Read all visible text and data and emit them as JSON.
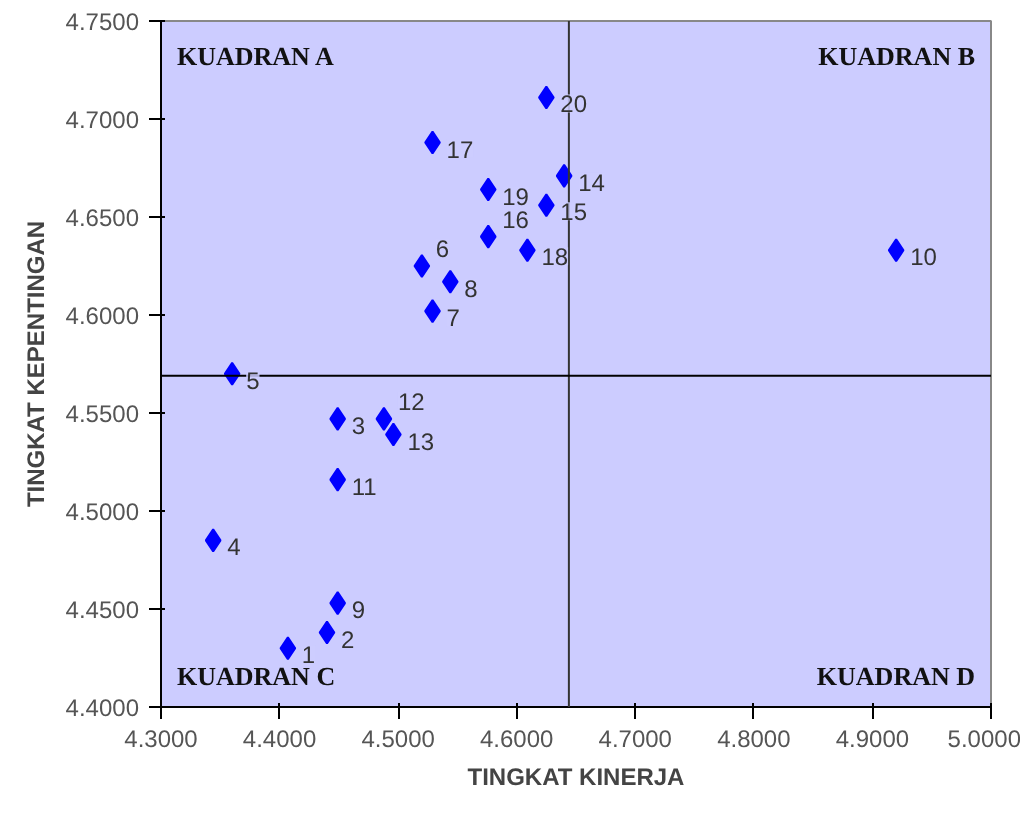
{
  "chart_data": {
    "type": "scatter",
    "xlabel": "TINGKAT KINERJA",
    "ylabel": "TINGKAT KEPENTINGAN",
    "x": [
      4.407,
      4.44,
      4.449,
      4.344,
      4.36,
      4.52,
      4.529,
      4.544,
      4.449,
      4.92,
      4.449,
      4.488,
      4.496,
      4.64,
      4.625,
      4.576,
      4.529,
      4.609,
      4.576,
      4.625
    ],
    "values": [
      4.43,
      4.438,
      4.547,
      4.485,
      4.57,
      4.625,
      4.602,
      4.617,
      4.453,
      4.633,
      4.516,
      4.547,
      4.539,
      4.671,
      4.656,
      4.64,
      4.688,
      4.633,
      4.664,
      4.711
    ],
    "color": "#0000ff",
    "marker": "diamond",
    "xlim": [
      4.3,
      5.0
    ],
    "ylim": [
      4.4,
      4.75
    ],
    "xticks": [
      {
        "value": 4.3,
        "label": "4.3000"
      },
      {
        "value": 4.4,
        "label": "4.4000"
      },
      {
        "value": 4.5,
        "label": "4.5000"
      },
      {
        "value": 4.6,
        "label": "4.6000"
      },
      {
        "value": 4.7,
        "label": "4.7000"
      },
      {
        "value": 4.8,
        "label": "4.8000"
      },
      {
        "value": 4.9,
        "label": "4.9000"
      },
      {
        "value": 5.0,
        "label": "5.0000"
      }
    ],
    "yticks": [
      {
        "value": 4.4,
        "label": "4.4000"
      },
      {
        "value": 4.45,
        "label": "4.4500"
      },
      {
        "value": 4.5,
        "label": "4.5000"
      },
      {
        "value": 4.55,
        "label": "4.5500"
      },
      {
        "value": 4.6,
        "label": "4.6000"
      },
      {
        "value": 4.65,
        "label": "4.6500"
      },
      {
        "value": 4.7,
        "label": "4.7000"
      },
      {
        "value": 4.75,
        "label": "4.7500"
      }
    ],
    "ref_lines": [
      {
        "axis": "x",
        "value": 4.644,
        "color": "#333333"
      },
      {
        "axis": "y",
        "value": 4.569,
        "color": "#000000"
      }
    ],
    "annotations": [
      "KUADRAN A",
      "KUADRAN B",
      "KUADRAN C",
      "KUADRAN D",
      {
        "text": "2",
        "x": 4.44,
        "y": 4.438
      },
      {
        "text": "3",
        "x": 4.449,
        "y": 4.547
      },
      {
        "text": "4",
        "x": 4.344,
        "y": 4.485
      },
      {
        "text": "5",
        "x": 4.36,
        "y": 4.57
      },
      {
        "text": "6",
        "x": 4.52,
        "y": 4.625
      },
      {
        "text": "7",
        "x": 4.529,
        "y": 4.602
      },
      {
        "text": "8",
        "x": 4.544,
        "y": 4.617
      },
      {
        "text": "9",
        "x": 4.449,
        "y": 4.453
      },
      {
        "text": "10",
        "x": 4.92,
        "y": 4.633
      },
      {
        "text": "11",
        "x": 4.449,
        "y": 4.516
      },
      {
        "text": "12",
        "x": 4.488,
        "y": 4.547
      },
      {
        "text": "13",
        "x": 4.496,
        "y": 4.539
      },
      {
        "text": "14",
        "x": 4.64,
        "y": 4.671
      },
      {
        "text": "15",
        "x": 4.625,
        "y": 4.656
      },
      {
        "text": "16",
        "x": 4.576,
        "y": 4.64
      },
      {
        "text": "17",
        "x": 4.529,
        "y": 4.688
      },
      {
        "text": "18",
        "x": 4.609,
        "y": 4.633
      },
      {
        "text": "19",
        "x": 4.576,
        "y": 4.664
      },
      {
        "text": "20",
        "x": 4.625,
        "y": 4.711
      },
      {
        "text": "1",
        "x": 4.407,
        "y": 4.43
      }
    ],
    "grid": false
  }
}
